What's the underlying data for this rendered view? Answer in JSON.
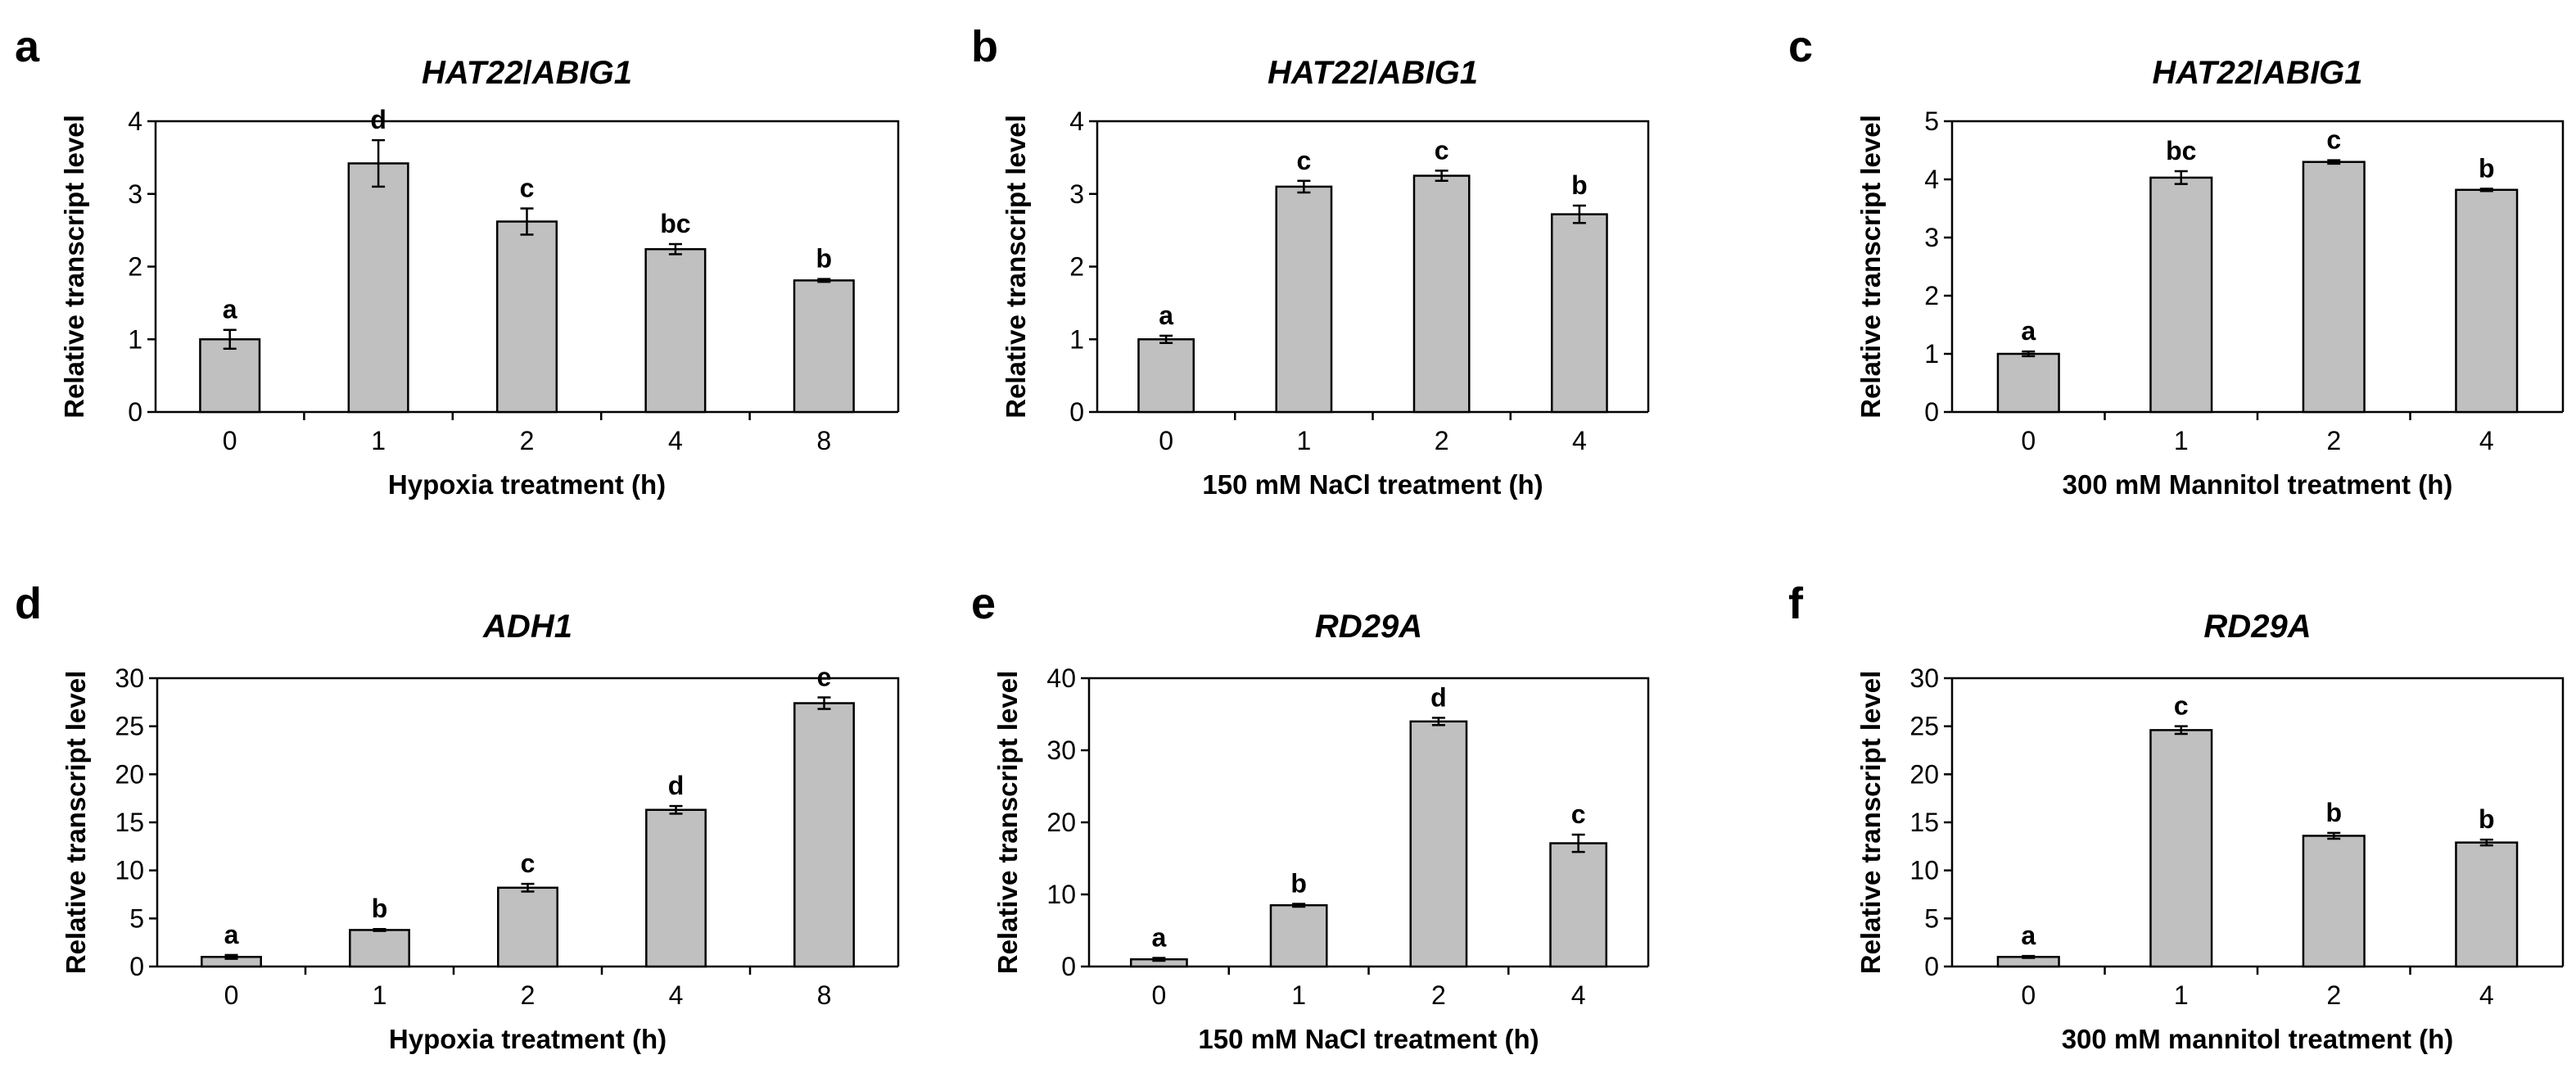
{
  "chart_data": [
    {
      "panel": "a",
      "type": "bar",
      "title_parts": [
        "HAT22",
        "/",
        "ABIG1"
      ],
      "xlabel": "Hypoxia treatment (h)",
      "ylabel": "Relative transcript level",
      "categories": [
        "0",
        "1",
        "2",
        "4",
        "8"
      ],
      "values": [
        1.0,
        3.42,
        2.62,
        2.24,
        1.81
      ],
      "errors": [
        0.13,
        0.32,
        0.18,
        0.07,
        0.02
      ],
      "significance": [
        "a",
        "d",
        "c",
        "bc",
        "b"
      ],
      "ylim": [
        0,
        4
      ],
      "yticks": [
        "0",
        "1",
        "2",
        "3",
        "4"
      ]
    },
    {
      "panel": "b",
      "type": "bar",
      "title_parts": [
        "HAT22",
        "/",
        "ABIG1"
      ],
      "xlabel": "150 mM NaCl treatment (h)",
      "ylabel": "Relative transcript level",
      "categories": [
        "0",
        "1",
        "2",
        "4"
      ],
      "values": [
        1.0,
        3.1,
        3.25,
        2.72
      ],
      "errors": [
        0.05,
        0.08,
        0.07,
        0.12
      ],
      "significance": [
        "a",
        "c",
        "c",
        "b"
      ],
      "ylim": [
        0,
        4
      ],
      "yticks": [
        "0",
        "1",
        "2",
        "3",
        "4"
      ]
    },
    {
      "panel": "c",
      "type": "bar",
      "title_parts": [
        "HAT22",
        "/",
        "ABIG1"
      ],
      "xlabel": "300 mM Mannitol treatment (h)",
      "ylabel": "Relative transcript level",
      "categories": [
        "0",
        "1",
        "2",
        "4"
      ],
      "values": [
        1.0,
        4.03,
        4.3,
        3.82
      ],
      "errors": [
        0.04,
        0.11,
        0.03,
        0.02
      ],
      "significance": [
        "a",
        "bc",
        "c",
        "b"
      ],
      "ylim": [
        0,
        5
      ],
      "yticks": [
        "0",
        "1",
        "2",
        "3",
        "4",
        "5"
      ]
    },
    {
      "panel": "d",
      "type": "bar",
      "title_parts": [
        "ADH1"
      ],
      "xlabel": "Hypoxia treatment (h)",
      "ylabel": "Relative transcript level",
      "categories": [
        "0",
        "1",
        "2",
        "4",
        "8"
      ],
      "values": [
        1.0,
        3.8,
        8.2,
        16.3,
        27.4
      ],
      "errors": [
        0.2,
        0.1,
        0.4,
        0.4,
        0.6
      ],
      "significance": [
        "a",
        "b",
        "c",
        "d",
        "e"
      ],
      "ylim": [
        0,
        30
      ],
      "yticks": [
        "0",
        "5",
        "10",
        "15",
        "20",
        "25",
        "30"
      ]
    },
    {
      "panel": "e",
      "type": "bar",
      "title_parts": [
        "RD29A"
      ],
      "xlabel": "150 mM NaCl treatment (h)",
      "ylabel": "Relative transcript level",
      "categories": [
        "0",
        "1",
        "2",
        "4"
      ],
      "values": [
        1.0,
        8.5,
        34.0,
        17.1
      ],
      "errors": [
        0.2,
        0.2,
        0.5,
        1.2
      ],
      "significance": [
        "a",
        "b",
        "d",
        "c"
      ],
      "ylim": [
        0,
        40
      ],
      "yticks": [
        "0",
        "10",
        "20",
        "30",
        "40"
      ]
    },
    {
      "panel": "f",
      "type": "bar",
      "title_parts": [
        "RD29A"
      ],
      "xlabel": "300 mM mannitol treatment (h)",
      "ylabel": "Relative transcript level",
      "categories": [
        "0",
        "1",
        "2",
        "4"
      ],
      "values": [
        1.0,
        24.6,
        13.6,
        12.9
      ],
      "errors": [
        0.1,
        0.4,
        0.3,
        0.3
      ],
      "significance": [
        "a",
        "c",
        "b",
        "b"
      ],
      "ylim": [
        0,
        30
      ],
      "yticks": [
        "0",
        "5",
        "10",
        "15",
        "20",
        "25",
        "30"
      ]
    }
  ]
}
